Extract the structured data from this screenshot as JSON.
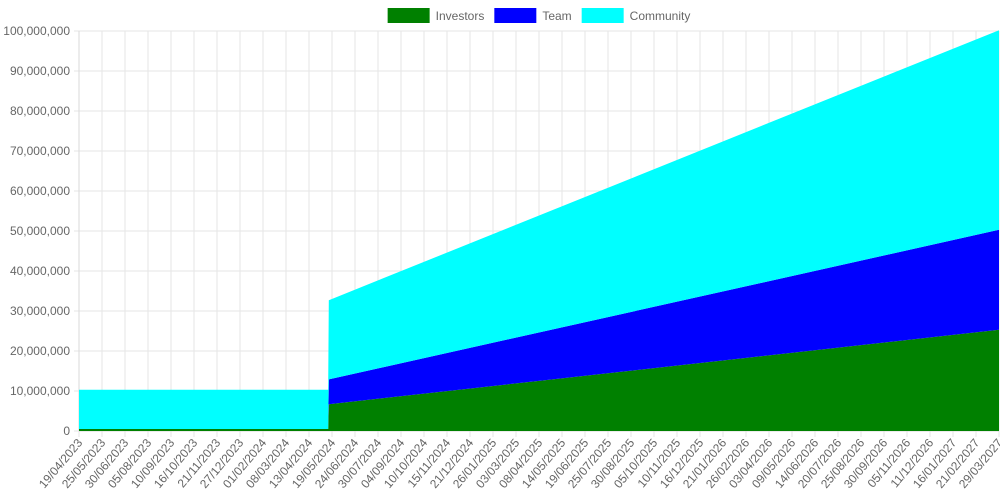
{
  "chart_data": {
    "type": "area",
    "stacked": true,
    "legend_position": "top-center",
    "grid": true,
    "ylim": [
      0,
      100000000
    ],
    "y_ticks": [
      "0",
      "10,000,000",
      "20,000,000",
      "30,000,000",
      "40,000,000",
      "50,000,000",
      "60,000,000",
      "70,000,000",
      "80,000,000",
      "90,000,000",
      "100,000,000"
    ],
    "x_ticks": [
      "19/04/2023",
      "25/05/2023",
      "30/06/2023",
      "05/08/2023",
      "10/09/2023",
      "16/10/2023",
      "21/11/2023",
      "27/12/2023",
      "01/02/2024",
      "08/03/2024",
      "13/04/2024",
      "19/05/2024",
      "24/06/2024",
      "30/07/2024",
      "04/09/2024",
      "10/10/2024",
      "15/11/2024",
      "21/12/2024",
      "26/01/2025",
      "03/03/2025",
      "08/04/2025",
      "14/05/2025",
      "19/06/2025",
      "25/07/2025",
      "30/08/2025",
      "05/10/2025",
      "10/11/2025",
      "16/12/2025",
      "21/01/2026",
      "26/02/2026",
      "03/04/2026",
      "09/05/2026",
      "14/06/2026",
      "20/07/2026",
      "25/08/2026",
      "30/09/2026",
      "05/11/2026",
      "11/12/2026",
      "16/01/2027",
      "21/02/2027",
      "29/03/2027"
    ],
    "series": [
      {
        "name": "Investors",
        "color": "#008000",
        "points": [
          {
            "x": "19/04/2023",
            "y": 500000
          },
          {
            "x": "13/05/2024",
            "y": 500000
          },
          {
            "x": "14/05/2024",
            "y": 6700000
          },
          {
            "x": "29/04/2027",
            "y": 25300000
          }
        ]
      },
      {
        "name": "Team",
        "color": "#0000ff",
        "points": [
          {
            "x": "19/04/2023",
            "y": 0
          },
          {
            "x": "13/05/2024",
            "y": 0
          },
          {
            "x": "14/05/2024",
            "y": 6200000
          },
          {
            "x": "29/04/2027",
            "y": 25000000
          }
        ]
      },
      {
        "name": "Community",
        "color": "#00ffff",
        "points": [
          {
            "x": "19/04/2023",
            "y": 9800000
          },
          {
            "x": "13/05/2024",
            "y": 9800000
          },
          {
            "x": "14/05/2024",
            "y": 19800000
          },
          {
            "x": "29/04/2027",
            "y": 49900000
          }
        ]
      }
    ]
  }
}
